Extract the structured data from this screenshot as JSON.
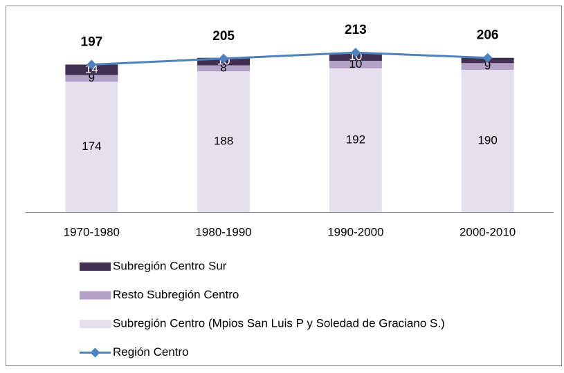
{
  "chart_data": {
    "type": "bar",
    "categories": [
      "1970-1980",
      "1980-1990",
      "1990-2000",
      "2000-2010"
    ],
    "series": [
      {
        "name": "Subregión Centro (Mpios San Luis P y Soledad de Graciano S.)",
        "color": "#e6e0ec",
        "type": "bar",
        "values": [
          174,
          188,
          192,
          190
        ]
      },
      {
        "name": "Resto Subregión Centro",
        "color": "#b3a2c7",
        "type": "bar",
        "values": [
          9,
          8,
          10,
          9
        ]
      },
      {
        "name": "Subregión Centro Sur",
        "color": "#403152",
        "type": "bar",
        "values": [
          14,
          10,
          10,
          7
        ]
      },
      {
        "name": "Región Centro",
        "color": "#4f81bd",
        "type": "line",
        "values": [
          197,
          205,
          213,
          206
        ]
      }
    ],
    "stacked": true,
    "ylim": [
      0,
      250
    ]
  }
}
